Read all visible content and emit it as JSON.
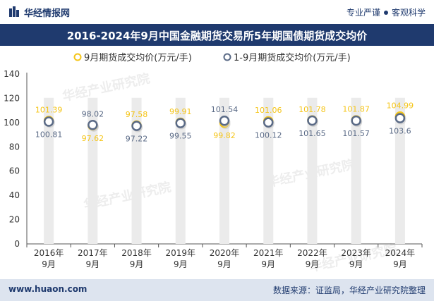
{
  "header": {
    "brand": "华经情报网",
    "tag_left": "专业严谨",
    "tag_right": "客观科学"
  },
  "footer": {
    "site": "www.huaon.com",
    "source": "数据来源：证监局，华经产业研究院整理"
  },
  "watermark": "华经产业研究院",
  "colors": {
    "series1": "#f5c518",
    "series2": "#5a6a86",
    "brand": "#1f3a6e",
    "bar": "#ebebeb"
  },
  "chart_data": {
    "type": "line",
    "title": "2016-2024年9月中国金融期货交易所5年期国债期货成交均价",
    "categories": [
      "2016年9月",
      "2017年9月",
      "2018年9月",
      "2019年9月",
      "2020年9月",
      "2021年9月",
      "2022年9月",
      "2023年9月",
      "2024年9月"
    ],
    "series": [
      {
        "name": "9月期货成交均价(万元/手)",
        "values": [
          101.39,
          97.62,
          97.58,
          99.91,
          99.82,
          101.06,
          101.78,
          101.87,
          104.99
        ]
      },
      {
        "name": "1-9月期货成交均价(万元/手)",
        "values": [
          100.81,
          98.02,
          97.22,
          99.55,
          101.54,
          100.12,
          101.65,
          101.57,
          103.6
        ]
      }
    ],
    "ylim": [
      0,
      140
    ],
    "yticks": [
      0,
      20,
      40,
      60,
      80,
      100,
      120,
      140
    ],
    "legend_position": "top-center",
    "grid": false
  }
}
